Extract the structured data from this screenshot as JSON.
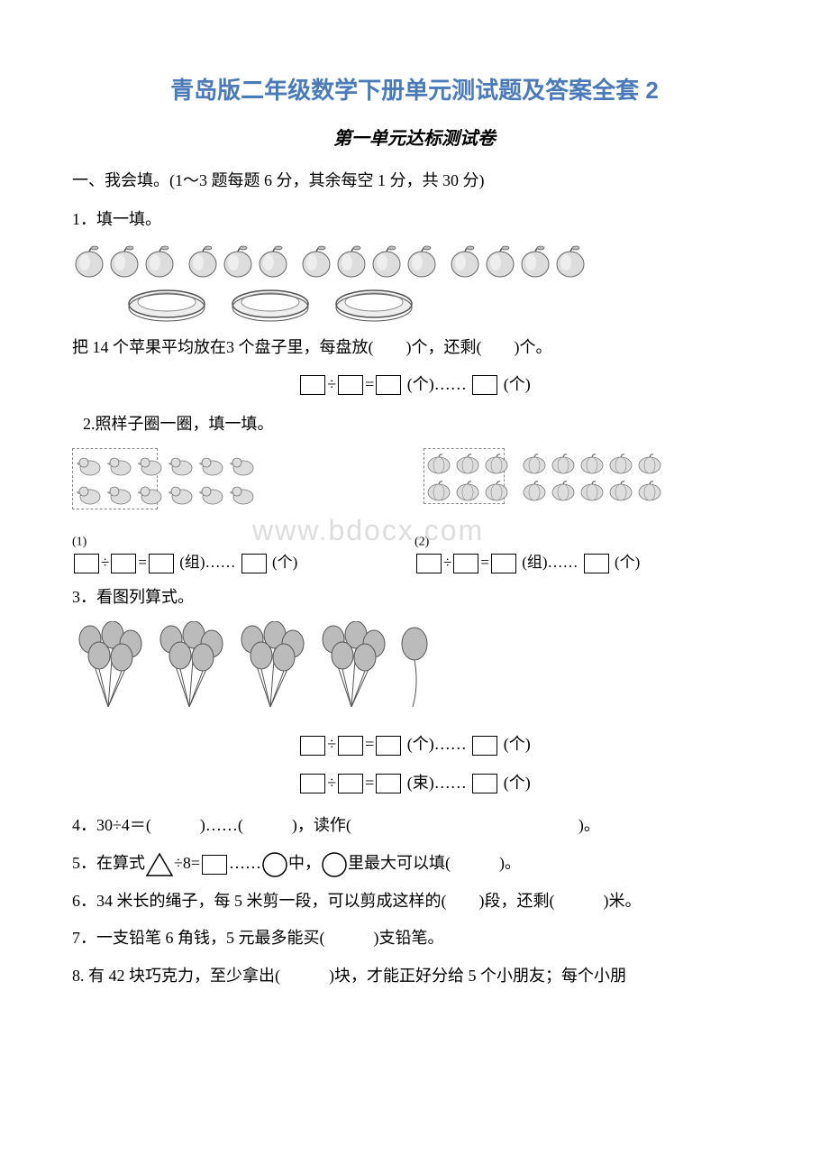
{
  "title": "青岛版二年级数学下册单元测试题及答案全套 2",
  "subtitle": "第一单元达标测试卷",
  "section1": {
    "heading": "一、我会填。(1～3 题每题 6 分，其余每空 1 分，共 30 分)",
    "q1": {
      "label": "1．填一填。",
      "text": "把 14 个苹果平均放在3 个盘子里，每盘放(　　)个，还剩(　　)个。",
      "eq_unit1": "(个)……",
      "eq_unit2": "(个)",
      "apple_groups": [
        3,
        3,
        4,
        4
      ],
      "plates": 3
    },
    "q2": {
      "label": "2.照样子圈一圈，填一填。",
      "sub1_label": "(1)",
      "sub2_label": "(2)",
      "eq_unit1": "(组)……",
      "eq_unit2": "(个)",
      "ducks_per_row": 6,
      "duck_rows": 2,
      "pumpkins_per_row": 8,
      "pumpkin_rows": 2
    },
    "q3": {
      "label": "3．看图列算式。",
      "eq1_unit1": "(个)……",
      "eq1_unit2": "(个)",
      "eq2_unit1": "(束)……",
      "eq2_unit2": "(个)",
      "bunches": [
        5,
        5,
        5,
        5
      ],
      "single": 1
    },
    "q4": "4．30÷4＝(　　　)……(　　　)，读作(　　　　　　　　　　　　　　)。",
    "q5_pre": "5．在算式",
    "q5_mid1": "÷8=",
    "q5_mid2": "……",
    "q5_mid3": "中，",
    "q5_post": "里最大可以填(　　　)。",
    "q6": "6．34 米长的绳子，每 5 米剪一段，可以剪成这样的(　　)段，还剩(　　　)米。",
    "q7": "7．一支铅笔 6 角钱，5 元最多能买(　　　)支铅笔。",
    "q8": "8.  有 42 块巧克力，至少拿出(　　　)块，才能正好分给 5 个小朋友；每个小朋"
  },
  "watermark": "www.bdocx.com",
  "colors": {
    "title": "#4a7ab8",
    "text": "#000000",
    "bg": "#ffffff",
    "watermark": "#dddddd"
  }
}
